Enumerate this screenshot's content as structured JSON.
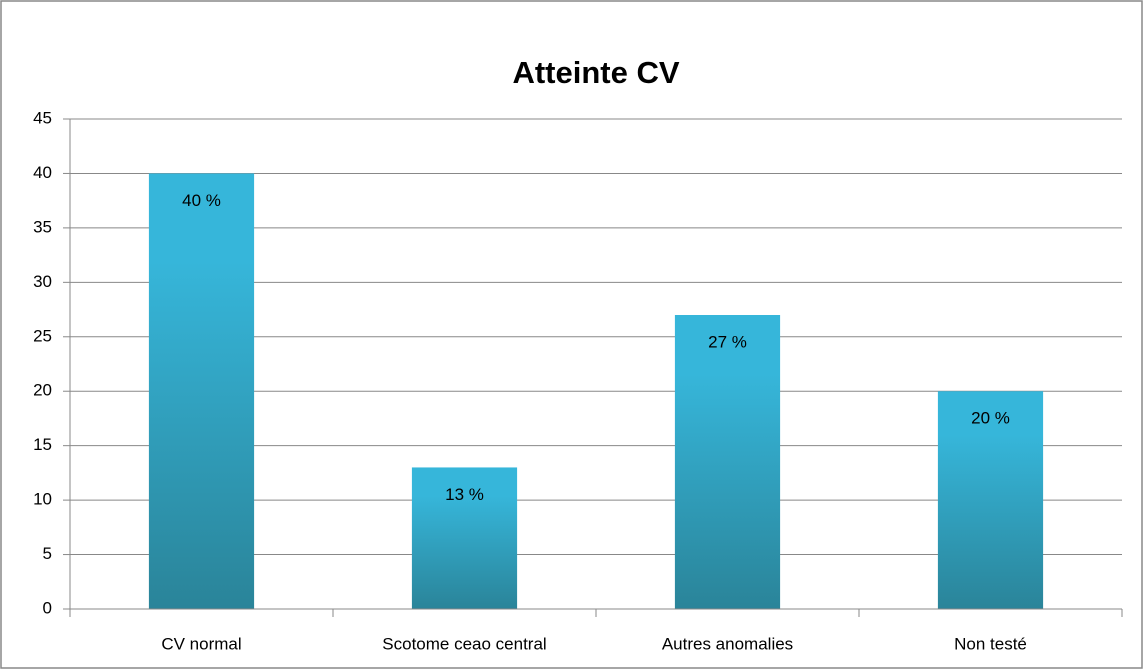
{
  "chart_data": {
    "type": "bar",
    "title": "Atteinte CV",
    "categories": [
      "CV normal",
      "Scotome ceao central",
      "Autres anomalies",
      "Non testé"
    ],
    "values": [
      40,
      13,
      27,
      20
    ],
    "value_labels": [
      "40 %",
      "13 %",
      "27 %",
      "20 %"
    ],
    "color": "#36b6da",
    "ylim": [
      0,
      45
    ],
    "yticks": [
      0,
      5,
      10,
      15,
      20,
      25,
      30,
      35,
      40,
      45
    ],
    "grid": true
  }
}
